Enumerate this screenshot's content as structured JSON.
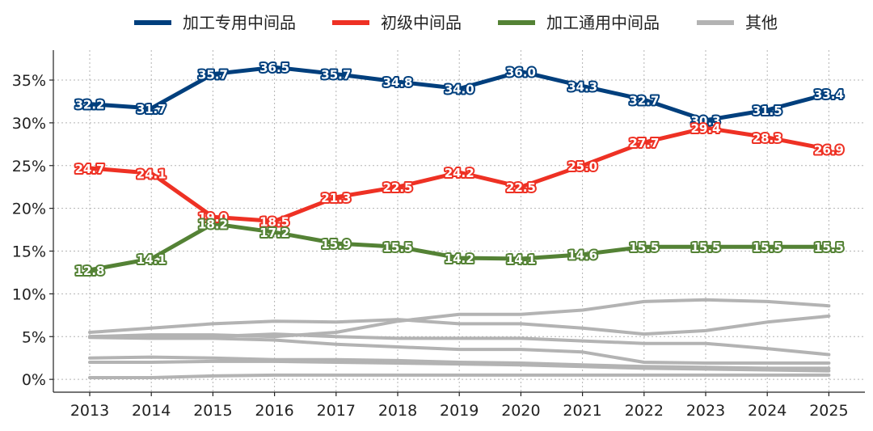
{
  "chart_data": {
    "type": "line",
    "title": "",
    "xlabel": "",
    "ylabel": "",
    "x": [
      "2013",
      "2014",
      "2015",
      "2016",
      "2017",
      "2018",
      "2019",
      "2020",
      "2021",
      "2022",
      "2023",
      "2024",
      "2025"
    ],
    "ylim": [
      -1.5,
      38.5
    ],
    "yticks": [
      0,
      5,
      10,
      15,
      20,
      25,
      30,
      35
    ],
    "ytick_labels": [
      "0%",
      "5%",
      "10%",
      "15%",
      "20%",
      "25%",
      "30%",
      "35%"
    ],
    "grid": true,
    "legend_position": "top",
    "legend": [
      {
        "name": "加工专用中间品",
        "color": "#003f7d"
      },
      {
        "name": "初级中间品",
        "color": "#ee3124"
      },
      {
        "name": "加工通用中间品",
        "color": "#548235"
      },
      {
        "name": "其他",
        "color": "#b3b3b3"
      }
    ],
    "series": [
      {
        "name": "加工专用中间品",
        "color": "#003f7d",
        "labeled": true,
        "values": [
          32.2,
          31.7,
          35.7,
          36.5,
          35.7,
          34.8,
          34.0,
          36.0,
          34.3,
          32.7,
          30.3,
          31.5,
          33.4
        ]
      },
      {
        "name": "初级中间品",
        "color": "#ee3124",
        "labeled": true,
        "values": [
          24.7,
          24.1,
          19.0,
          18.5,
          21.3,
          22.5,
          24.2,
          22.5,
          25.0,
          27.7,
          29.4,
          28.3,
          26.9
        ]
      },
      {
        "name": "加工通用中间品",
        "color": "#548235",
        "labeled": true,
        "values": [
          12.8,
          14.1,
          18.2,
          17.2,
          15.9,
          15.5,
          14.2,
          14.1,
          14.6,
          15.5,
          15.5,
          15.5,
          15.5
        ]
      }
    ],
    "other_series": [
      {
        "name": "其他",
        "color": "#b3b3b3",
        "values": [
          5.5,
          6.0,
          6.5,
          6.8,
          6.7,
          7.0,
          6.5,
          6.5,
          6.0,
          5.3,
          5.7,
          6.7,
          7.4
        ]
      },
      {
        "name": "其他",
        "color": "#b3b3b3",
        "values": [
          5.0,
          5.2,
          5.2,
          5.0,
          5.5,
          6.8,
          7.6,
          7.6,
          8.1,
          9.1,
          9.3,
          9.1,
          8.6
        ]
      },
      {
        "name": "其他",
        "color": "#b3b3b3",
        "values": [
          5.0,
          5.0,
          5.0,
          5.3,
          5.0,
          4.8,
          4.8,
          4.8,
          4.5,
          4.2,
          4.2,
          3.6,
          2.9
        ]
      },
      {
        "name": "其他",
        "color": "#b3b3b3",
        "values": [
          4.9,
          4.8,
          4.8,
          4.6,
          4.1,
          3.8,
          3.5,
          3.5,
          3.2,
          2.0,
          1.9,
          1.9,
          1.9
        ]
      },
      {
        "name": "其他",
        "color": "#b3b3b3",
        "values": [
          2.5,
          2.6,
          2.5,
          2.3,
          2.3,
          2.2,
          2.0,
          1.9,
          1.7,
          1.5,
          1.4,
          1.3,
          1.3
        ]
      },
      {
        "name": "其他",
        "color": "#b3b3b3",
        "values": [
          2.0,
          2.0,
          2.1,
          2.1,
          2.0,
          1.9,
          1.8,
          1.7,
          1.5,
          1.3,
          1.2,
          1.1,
          1.0
        ]
      },
      {
        "name": "其他",
        "color": "#b3b3b3",
        "values": [
          0.2,
          0.2,
          0.4,
          0.5,
          0.5,
          0.5,
          0.5,
          0.5,
          0.5,
          0.5,
          0.5,
          0.5,
          0.5
        ]
      }
    ]
  }
}
